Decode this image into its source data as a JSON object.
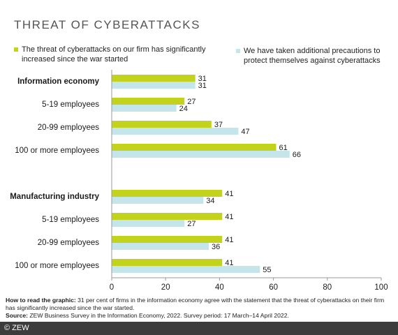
{
  "title": "THREAT OF CYBERATTACKS",
  "colors": {
    "series1": "#c3d21b",
    "series2": "#c4e6ea",
    "footer_bg": "#3c3c3c"
  },
  "chart_data": {
    "type": "bar",
    "orientation": "horizontal",
    "categories": [
      "Information economy",
      "5-19 employees",
      "20-99 employees",
      "100 or more employees",
      "Manufacturing industry",
      "5-19 employees",
      "20-99 employees",
      "100 or more employees"
    ],
    "bold_categories": [
      0,
      4
    ],
    "series": [
      {
        "name": "The threat of cyberattacks on our firm has significantly increased since the war started",
        "color": "#c3d21b",
        "values": [
          31,
          27,
          37,
          61,
          41,
          41,
          41,
          41
        ]
      },
      {
        "name": "We have taken additional precautions to protect themselves against cyberattacks",
        "color": "#c4e6ea",
        "values": [
          31,
          24,
          47,
          66,
          34,
          27,
          36,
          55
        ]
      }
    ],
    "x_ticks": [
      "0",
      "20",
      "40",
      "60",
      "80",
      "100"
    ],
    "xlim": [
      0,
      100
    ],
    "grid": false,
    "legend_position": "top"
  },
  "notes": {
    "how_label": "How to read the graphic:",
    "how_text": " 31 per cent of firms in the information economy agree with the statement that the threat of cyberattacks on their firm has significantly increased since the war started.",
    "source_label": "Source:",
    "source_text": " ZEW Business Survey in the Information Economy, 2022. Survey period: 17 March–14 April 2022."
  },
  "footer": "© ZEW"
}
